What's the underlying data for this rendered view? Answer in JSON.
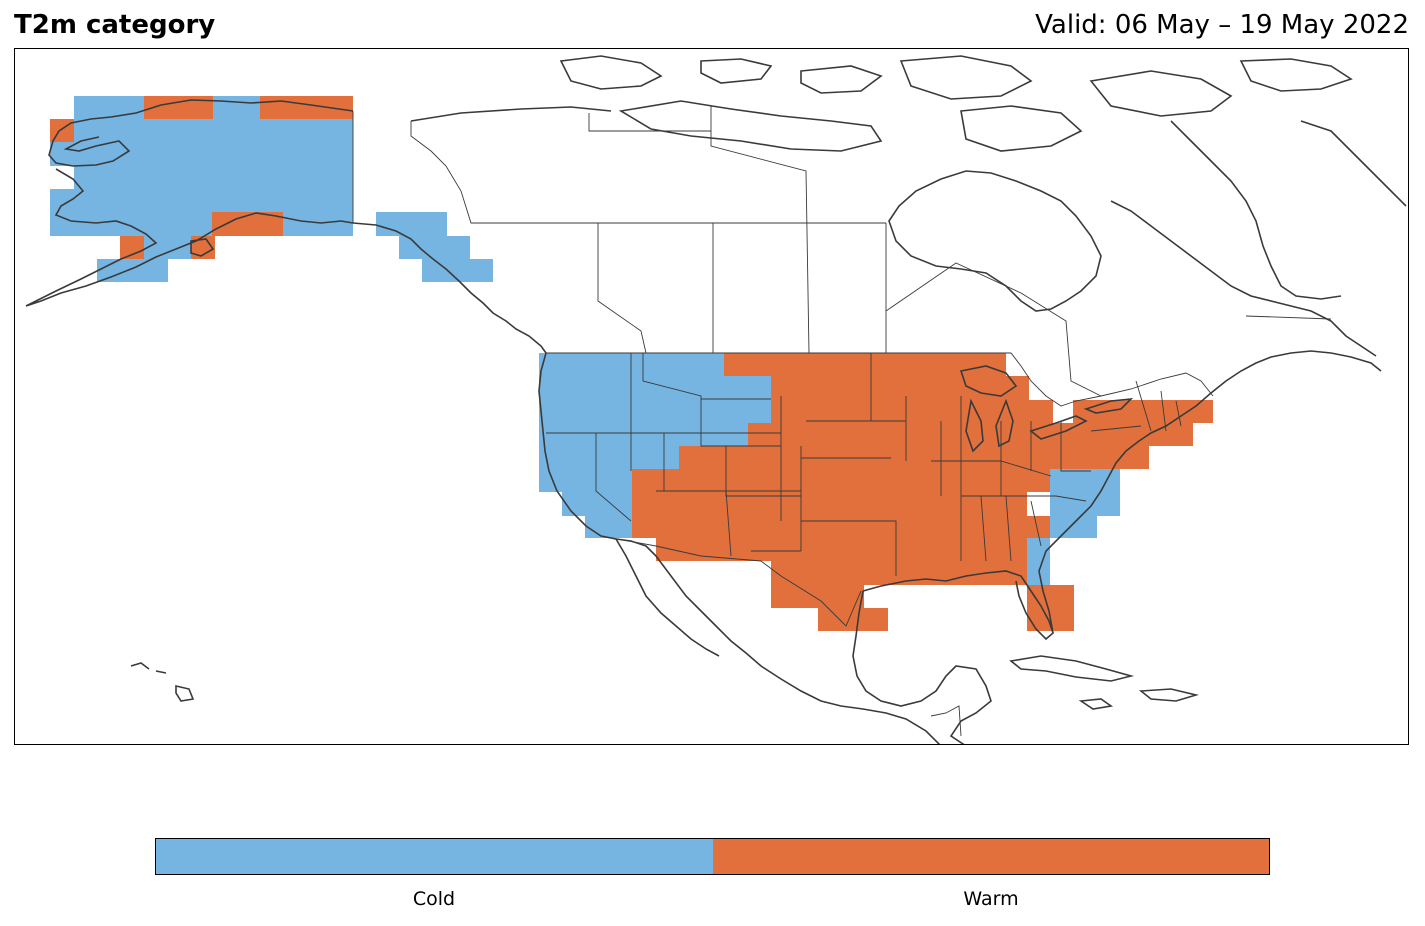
{
  "header": {
    "title": "T2m category",
    "valid": "Valid: 06 May – 19 May 2022"
  },
  "legend": {
    "categories": [
      {
        "label": "Cold",
        "color": "#76b5e2"
      },
      {
        "label": "Warm",
        "color": "#e1703c"
      }
    ]
  },
  "colors": {
    "cold": "#76b5e2",
    "warm": "#e1703c",
    "coastline": "#3a3a3a",
    "border": "#3a3a3a"
  }
}
